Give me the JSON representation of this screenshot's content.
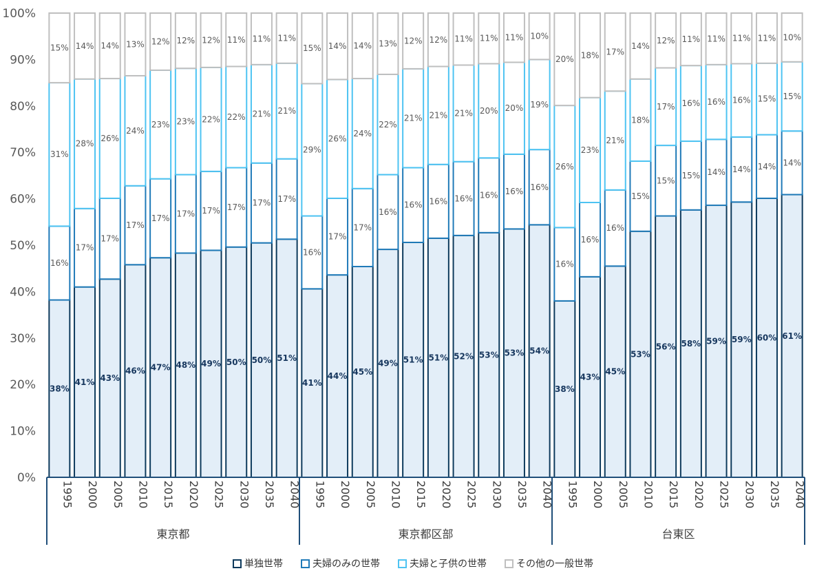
{
  "colors": {
    "single": "#0d3a5c",
    "couple": "#1f7ab8",
    "couple_children": "#4dc3f2",
    "other": "#bfbfbf",
    "single_fill": "#e3eef8",
    "axis": "#1f4e79"
  },
  "chart_data": {
    "type": "bar",
    "stacked": true,
    "ylim": [
      0,
      100
    ],
    "yticks": [
      "0%",
      "10%",
      "20%",
      "30%",
      "40%",
      "50%",
      "60%",
      "70%",
      "80%",
      "90%",
      "100%"
    ],
    "years": [
      "1995",
      "2000",
      "2005",
      "2010",
      "2015",
      "2020",
      "2025",
      "2030",
      "2035",
      "2040"
    ],
    "legend_position": "bottom",
    "legend": [
      "単独世帯",
      "夫婦のみの世帯",
      "夫婦と子供の世帯",
      "その他の一般世帯"
    ],
    "groups": [
      {
        "name": "東京都",
        "series": [
          {
            "name": "単独世帯",
            "values": [
              38.2,
              41.0,
              42.7,
              45.8,
              47.3,
              48.3,
              48.9,
              49.6,
              50.5,
              51.3
            ]
          },
          {
            "name": "夫婦のみの世帯",
            "values": [
              15.9,
              16.9,
              17.4,
              17.0,
              17.0,
              16.9,
              17.0,
              17.1,
              17.2,
              17.3
            ]
          },
          {
            "name": "夫婦と子供の世帯",
            "values": [
              30.9,
              27.9,
              25.8,
              23.7,
              23.4,
              22.9,
              22.4,
              21.8,
              21.2,
              20.6
            ]
          },
          {
            "name": "その他の一般世帯",
            "values": [
              15.0,
              14.2,
              14.1,
              13.5,
              12.3,
              11.9,
              11.7,
              11.5,
              11.1,
              10.8
            ]
          }
        ],
        "labels": [
          [
            "38%",
            "41%",
            "43%",
            "46%",
            "47%",
            "48%",
            "49%",
            "50%",
            "50%",
            "51%"
          ],
          [
            "16%",
            "17%",
            "17%",
            "17%",
            "17%",
            "17%",
            "17%",
            "17%",
            "17%",
            "17%"
          ],
          [
            "31%",
            "28%",
            "26%",
            "24%",
            "23%",
            "23%",
            "22%",
            "22%",
            "21%",
            "21%"
          ],
          [
            "15%",
            "14%",
            "14%",
            "13%",
            "12%",
            "12%",
            "12%",
            "11%",
            "11%",
            "11%"
          ]
        ]
      },
      {
        "name": "東京都区部",
        "series": [
          {
            "name": "単独世帯",
            "values": [
              40.6,
              43.6,
              45.4,
              49.1,
              50.6,
              51.5,
              52.1,
              52.7,
              53.5,
              54.4
            ]
          },
          {
            "name": "夫婦のみの世帯",
            "values": [
              15.7,
              16.5,
              16.8,
              16.1,
              16.1,
              15.9,
              15.9,
              16.1,
              16.1,
              16.2
            ]
          },
          {
            "name": "夫婦と子供の世帯",
            "values": [
              28.5,
              25.6,
              23.7,
              21.6,
              21.3,
              21.1,
              20.8,
              20.3,
              19.8,
              19.4
            ]
          },
          {
            "name": "その他の一般世帯",
            "values": [
              15.2,
              14.3,
              14.1,
              13.2,
              12.0,
              11.5,
              11.2,
              10.9,
              10.6,
              10.0
            ]
          }
        ],
        "labels": [
          [
            "41%",
            "44%",
            "45%",
            "49%",
            "51%",
            "51%",
            "52%",
            "53%",
            "53%",
            "54%"
          ],
          [
            "16%",
            "17%",
            "17%",
            "16%",
            "16%",
            "16%",
            "16%",
            "16%",
            "16%",
            "16%"
          ],
          [
            "29%",
            "26%",
            "24%",
            "22%",
            "21%",
            "21%",
            "21%",
            "20%",
            "20%",
            "19%"
          ],
          [
            "15%",
            "14%",
            "14%",
            "13%",
            "12%",
            "12%",
            "11%",
            "11%",
            "11%",
            "10%"
          ]
        ]
      },
      {
        "name": "台東区",
        "series": [
          {
            "name": "単独世帯",
            "values": [
              38.0,
              43.2,
              45.5,
              53.0,
              56.3,
              57.6,
              58.6,
              59.3,
              60.1,
              60.9
            ]
          },
          {
            "name": "夫婦のみの世帯",
            "values": [
              15.8,
              16.0,
              16.4,
              15.1,
              15.2,
              14.8,
              14.2,
              14.0,
              13.7,
              13.7
            ]
          },
          {
            "name": "夫婦と子供の世帯",
            "values": [
              26.3,
              22.6,
              21.3,
              17.7,
              16.7,
              16.3,
              16.1,
              15.8,
              15.4,
              14.9
            ]
          },
          {
            "name": "その他の一般世帯",
            "values": [
              19.9,
              18.2,
              16.8,
              14.2,
              11.8,
              11.3,
              11.1,
              10.9,
              10.8,
              10.5
            ]
          }
        ],
        "labels": [
          [
            "38%",
            "43%",
            "45%",
            "53%",
            "56%",
            "58%",
            "59%",
            "59%",
            "60%",
            "61%"
          ],
          [
            "16%",
            "16%",
            "16%",
            "15%",
            "15%",
            "15%",
            "14%",
            "14%",
            "14%",
            "14%"
          ],
          [
            "26%",
            "23%",
            "21%",
            "18%",
            "17%",
            "16%",
            "16%",
            "16%",
            "15%",
            "15%"
          ],
          [
            "20%",
            "18%",
            "17%",
            "14%",
            "12%",
            "11%",
            "11%",
            "11%",
            "11%",
            "10%"
          ]
        ]
      }
    ]
  }
}
